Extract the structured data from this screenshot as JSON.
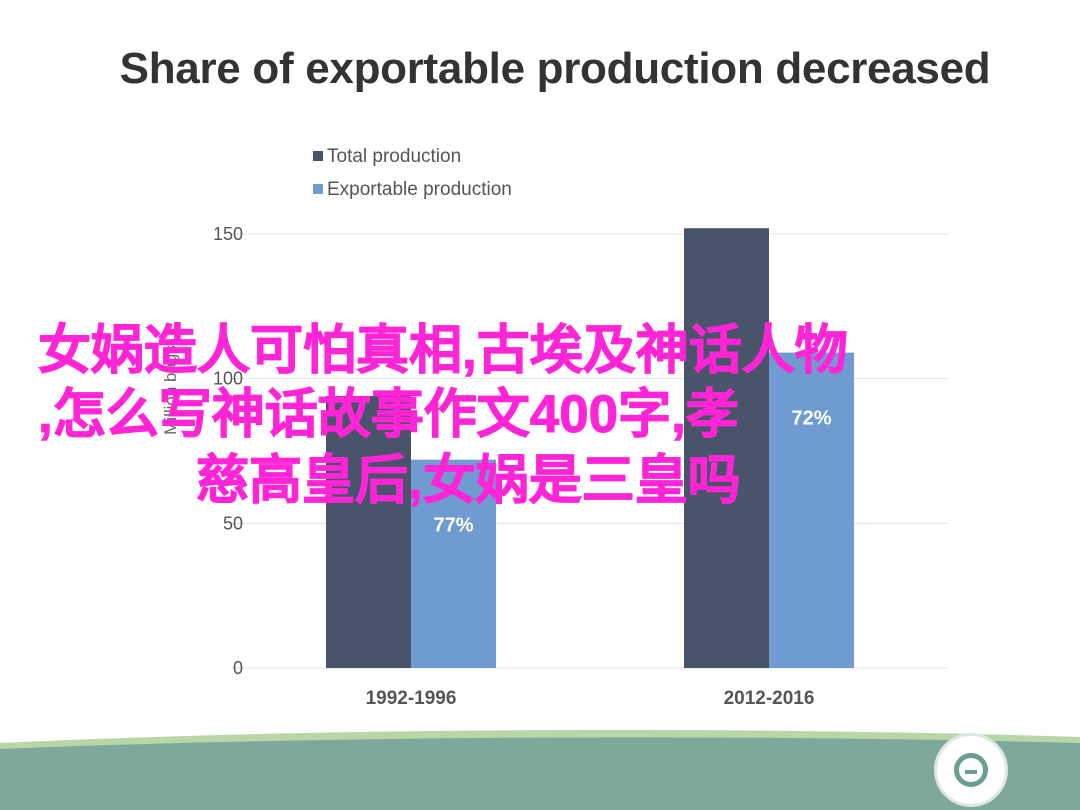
{
  "chart_data": {
    "type": "bar",
    "title": "Share of exportable production decreased",
    "ylabel": "Million bags",
    "ylim": [
      0,
      150
    ],
    "yticks": [
      0,
      50,
      100,
      150
    ],
    "categories": [
      "1992-1996",
      "2012-2016"
    ],
    "series": [
      {
        "name": "Total production",
        "color": "#49536a",
        "values": [
          94,
          152
        ]
      },
      {
        "name": "Exportable production",
        "color": "#6f9bd1",
        "values": [
          72,
          109
        ],
        "data_labels": [
          "77%",
          "72%"
        ]
      }
    ],
    "legend_position": "top-left",
    "grid": true
  },
  "overlay": {
    "line1": "女娲造人可怕真相,古埃及神话人物",
    "line2": ",怎么写神话故事作文400字,孝",
    "line3": "慈高皇后,女娲是三皇吗",
    "color": "#ff24d6"
  },
  "footer": {
    "logo_icon": "circle-logo-icon",
    "band_color": "#7ea89c"
  }
}
